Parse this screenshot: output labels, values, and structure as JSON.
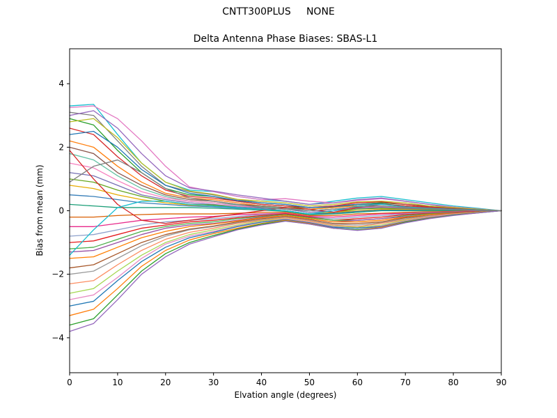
{
  "figure": {
    "suptitle": "CNTT300PLUS     NONE"
  },
  "chart_data": {
    "type": "line",
    "title": "Delta Antenna Phase Biases: SBAS-L1",
    "xlabel": "Elvation angle (degrees)",
    "ylabel": "Bias from mean (mm)",
    "xlim": [
      0,
      90
    ],
    "ylim": [
      -5.1,
      5.1
    ],
    "xticks": [
      0,
      10,
      20,
      30,
      40,
      50,
      60,
      70,
      80,
      90
    ],
    "yticks": [
      -4,
      -2,
      0,
      2,
      4
    ],
    "ytick_labels": [
      "−4",
      "−2",
      "0",
      "2",
      "4"
    ],
    "grid": false,
    "legend": "none",
    "background": "#ffffff",
    "frame_color": "#000000",
    "x": [
      0,
      5,
      10,
      15,
      20,
      25,
      30,
      35,
      40,
      45,
      50,
      55,
      60,
      65,
      70,
      75,
      80,
      85,
      90
    ],
    "series": [
      {
        "name": "line-01",
        "color": "#17becf",
        "values": [
          3.3,
          3.35,
          2.4,
          1.5,
          0.9,
          0.65,
          0.6,
          0.45,
          0.35,
          0.3,
          0.2,
          0.3,
          0.4,
          0.45,
          0.35,
          0.25,
          0.15,
          0.08,
          0
        ]
      },
      {
        "name": "line-02",
        "color": "#e377c2",
        "values": [
          3.25,
          3.3,
          2.9,
          2.2,
          1.4,
          0.75,
          0.6,
          0.45,
          0.35,
          0.38,
          0.3,
          0.25,
          0.32,
          0.38,
          0.3,
          0.2,
          0.12,
          0.06,
          0
        ]
      },
      {
        "name": "line-03",
        "color": "#7f7f7f",
        "values": [
          3.1,
          3.0,
          2.2,
          1.4,
          0.8,
          0.6,
          0.5,
          0.35,
          0.25,
          0.2,
          0.1,
          0.15,
          0.2,
          0.25,
          0.2,
          0.15,
          0.1,
          0.05,
          0
        ]
      },
      {
        "name": "line-04",
        "color": "#9467bd",
        "values": [
          3.0,
          3.15,
          2.6,
          1.8,
          1.1,
          0.72,
          0.62,
          0.5,
          0.4,
          0.3,
          0.2,
          0.25,
          0.35,
          0.4,
          0.3,
          0.2,
          0.1,
          0.05,
          0
        ]
      },
      {
        "name": "line-05",
        "color": "#2ca02c",
        "values": [
          2.9,
          2.7,
          1.9,
          1.2,
          0.7,
          0.5,
          0.45,
          0.3,
          0.2,
          0.15,
          0.05,
          0.1,
          0.2,
          0.25,
          0.2,
          0.12,
          0.08,
          0.04,
          0
        ]
      },
      {
        "name": "line-06",
        "color": "#bcbd22",
        "values": [
          2.8,
          2.9,
          2.3,
          1.5,
          0.9,
          0.62,
          0.52,
          0.36,
          0.3,
          0.25,
          0.15,
          0.2,
          0.28,
          0.3,
          0.25,
          0.15,
          0.1,
          0.05,
          0
        ]
      },
      {
        "name": "line-07",
        "color": "#d62728",
        "values": [
          2.6,
          2.4,
          1.7,
          1.1,
          0.65,
          0.45,
          0.4,
          0.3,
          0.2,
          0.15,
          0.1,
          0.15,
          0.25,
          0.28,
          0.2,
          0.12,
          0.07,
          0.03,
          0
        ]
      },
      {
        "name": "line-08",
        "color": "#1f77b4",
        "values": [
          2.4,
          2.5,
          2.0,
          1.3,
          0.8,
          0.55,
          0.45,
          0.32,
          0.25,
          0.2,
          0.1,
          0.12,
          0.2,
          0.22,
          0.15,
          0.1,
          0.06,
          0.03,
          0
        ]
      },
      {
        "name": "line-09",
        "color": "#ff7f0e",
        "values": [
          2.2,
          2.0,
          1.4,
          0.9,
          0.55,
          0.4,
          0.35,
          0.25,
          0.15,
          0.1,
          0.05,
          0.1,
          0.16,
          0.2,
          0.15,
          0.1,
          0.05,
          0.02,
          0
        ]
      },
      {
        "name": "line-10",
        "color": "#8c564b",
        "values": [
          2.0,
          1.8,
          1.2,
          0.8,
          0.5,
          0.35,
          0.3,
          0.2,
          0.15,
          0.1,
          0.0,
          0.05,
          0.1,
          0.15,
          0.1,
          0.08,
          0.05,
          0.02,
          0
        ]
      },
      {
        "name": "line-11",
        "color": "#66c2a5",
        "values": [
          1.8,
          1.6,
          1.1,
          0.7,
          0.45,
          0.3,
          0.25,
          0.18,
          0.12,
          0.08,
          0.0,
          0.05,
          0.12,
          0.15,
          0.1,
          0.06,
          0.04,
          0.02,
          0
        ]
      },
      {
        "name": "line-12",
        "color": "#f781bf",
        "values": [
          1.5,
          1.35,
          0.95,
          0.6,
          0.4,
          0.3,
          0.25,
          0.15,
          0.1,
          0.05,
          -0.05,
          0.0,
          0.1,
          0.12,
          0.08,
          0.05,
          0.03,
          0.01,
          0
        ]
      },
      {
        "name": "line-13",
        "color": "#7570b3",
        "values": [
          1.2,
          1.1,
          0.8,
          0.5,
          0.35,
          0.25,
          0.2,
          0.12,
          0.08,
          0.05,
          -0.05,
          0.0,
          0.08,
          0.1,
          0.07,
          0.05,
          0.03,
          0.01,
          0
        ]
      },
      {
        "name": "line-14",
        "color": "#66a61e",
        "values": [
          1.0,
          0.9,
          0.65,
          0.45,
          0.3,
          0.2,
          0.18,
          0.1,
          0.05,
          0.0,
          -0.1,
          -0.05,
          0.05,
          0.08,
          0.05,
          0.03,
          0.02,
          0.01,
          0
        ]
      },
      {
        "name": "line-15",
        "color": "#e6ab02",
        "values": [
          0.8,
          0.7,
          0.5,
          0.35,
          0.25,
          0.18,
          0.15,
          0.1,
          0.05,
          0.0,
          -0.1,
          -0.05,
          0.0,
          0.05,
          0.04,
          0.02,
          0.01,
          0.0,
          0
        ]
      },
      {
        "name": "line-16",
        "color": "#377eb8",
        "values": [
          0.5,
          0.45,
          0.35,
          0.25,
          0.2,
          0.15,
          0.12,
          0.08,
          0.05,
          0.0,
          -0.1,
          -0.08,
          -0.02,
          0.02,
          0.02,
          0.01,
          0.01,
          0.0,
          0
        ]
      },
      {
        "name": "line-17",
        "color": "#1b9e77",
        "values": [
          0.2,
          0.15,
          0.1,
          0.1,
          0.1,
          0.1,
          0.08,
          0.05,
          0.02,
          -0.02,
          -0.12,
          -0.1,
          -0.05,
          0.0,
          0.0,
          0.0,
          0.0,
          0.0,
          0
        ]
      },
      {
        "name": "line-18",
        "color": "#d95f02",
        "values": [
          -0.2,
          -0.2,
          -0.15,
          -0.12,
          -0.1,
          -0.1,
          -0.1,
          -0.08,
          -0.05,
          -0.05,
          -0.15,
          -0.15,
          -0.1,
          -0.08,
          -0.05,
          -0.03,
          -0.02,
          -0.01,
          0
        ]
      },
      {
        "name": "line-19",
        "color": "#e7298a",
        "values": [
          -0.5,
          -0.5,
          -0.4,
          -0.3,
          -0.25,
          -0.2,
          -0.18,
          -0.12,
          -0.1,
          -0.08,
          -0.18,
          -0.2,
          -0.15,
          -0.1,
          -0.08,
          -0.05,
          -0.03,
          -0.01,
          0
        ]
      },
      {
        "name": "line-20",
        "color": "#8da0cb",
        "values": [
          -0.8,
          -0.75,
          -0.6,
          -0.45,
          -0.35,
          -0.3,
          -0.25,
          -0.18,
          -0.12,
          -0.1,
          -0.2,
          -0.25,
          -0.2,
          -0.15,
          -0.1,
          -0.06,
          -0.04,
          -0.02,
          0
        ]
      },
      {
        "name": "line-21",
        "color": "#e41a1c",
        "values": [
          -1.0,
          -0.95,
          -0.75,
          -0.55,
          -0.45,
          -0.35,
          -0.3,
          -0.22,
          -0.15,
          -0.1,
          -0.2,
          -0.3,
          -0.25,
          -0.2,
          -0.12,
          -0.08,
          -0.05,
          -0.02,
          0
        ]
      },
      {
        "name": "line-22",
        "color": "#4daf4a",
        "values": [
          -1.2,
          -1.15,
          -0.9,
          -0.65,
          -0.5,
          -0.4,
          -0.35,
          -0.25,
          -0.18,
          -0.12,
          -0.22,
          -0.3,
          -0.3,
          -0.25,
          -0.15,
          -0.1,
          -0.06,
          -0.03,
          0
        ]
      },
      {
        "name": "line-23",
        "color": "#984ea3",
        "values": [
          -1.3,
          -1.25,
          -1.0,
          -0.75,
          -0.55,
          -0.45,
          -0.4,
          -0.3,
          -0.2,
          -0.15,
          -0.25,
          -0.35,
          -0.3,
          -0.25,
          -0.18,
          -0.12,
          -0.07,
          -0.03,
          0
        ]
      },
      {
        "name": "line-24",
        "color": "#ff7f00",
        "values": [
          -1.5,
          -1.45,
          -1.15,
          -0.85,
          -0.65,
          -0.5,
          -0.42,
          -0.32,
          -0.22,
          -0.15,
          -0.25,
          -0.35,
          -0.35,
          -0.3,
          -0.2,
          -0.12,
          -0.08,
          -0.04,
          0
        ]
      },
      {
        "name": "line-25",
        "color": "#a65628",
        "values": [
          -1.8,
          -1.7,
          -1.35,
          -1.0,
          -0.75,
          -0.58,
          -0.48,
          -0.35,
          -0.25,
          -0.18,
          -0.28,
          -0.4,
          -0.4,
          -0.35,
          -0.22,
          -0.15,
          -0.09,
          -0.04,
          0
        ]
      },
      {
        "name": "line-26",
        "color": "#999999",
        "values": [
          -2.0,
          -1.9,
          -1.5,
          -1.1,
          -0.8,
          -0.6,
          -0.5,
          -0.38,
          -0.28,
          -0.2,
          -0.3,
          -0.42,
          -0.45,
          -0.38,
          -0.25,
          -0.16,
          -0.1,
          -0.05,
          0
        ]
      },
      {
        "name": "line-27",
        "color": "#fc8d62",
        "values": [
          -2.3,
          -2.2,
          -1.7,
          -1.25,
          -0.9,
          -0.68,
          -0.55,
          -0.4,
          -0.3,
          -0.22,
          -0.32,
          -0.45,
          -0.5,
          -0.4,
          -0.28,
          -0.18,
          -0.1,
          -0.05,
          0
        ]
      },
      {
        "name": "line-28",
        "color": "#a6d854",
        "values": [
          -2.6,
          -2.45,
          -1.9,
          -1.4,
          -1.0,
          -0.75,
          -0.6,
          -0.45,
          -0.32,
          -0.25,
          -0.35,
          -0.48,
          -0.52,
          -0.45,
          -0.3,
          -0.2,
          -0.12,
          -0.05,
          0
        ]
      },
      {
        "name": "line-29",
        "color": "#e78ac3",
        "values": [
          -2.8,
          -2.65,
          -2.1,
          -1.5,
          -1.05,
          -0.8,
          -0.65,
          -0.48,
          -0.35,
          -0.26,
          -0.36,
          -0.5,
          -0.55,
          -0.48,
          -0.32,
          -0.2,
          -0.12,
          -0.06,
          0
        ]
      },
      {
        "name": "line-30",
        "color": "#1f77b4",
        "values": [
          -3.0,
          -2.85,
          -2.2,
          -1.6,
          -1.15,
          -0.85,
          -0.68,
          -0.5,
          -0.36,
          -0.28,
          -0.38,
          -0.52,
          -0.55,
          -0.5,
          -0.34,
          -0.22,
          -0.13,
          -0.06,
          0
        ]
      },
      {
        "name": "line-31",
        "color": "#ff7f0e",
        "values": [
          -3.3,
          -3.1,
          -2.45,
          -1.75,
          -1.25,
          -0.92,
          -0.72,
          -0.55,
          -0.4,
          -0.3,
          -0.4,
          -0.55,
          -0.6,
          -0.52,
          -0.35,
          -0.23,
          -0.14,
          -0.06,
          0
        ]
      },
      {
        "name": "line-32",
        "color": "#2ca02c",
        "values": [
          -3.6,
          -3.4,
          -2.65,
          -1.9,
          -1.35,
          -1.0,
          -0.78,
          -0.58,
          -0.42,
          -0.32,
          -0.42,
          -0.55,
          -0.6,
          -0.55,
          -0.36,
          -0.24,
          -0.14,
          -0.07,
          0
        ]
      },
      {
        "name": "line-33",
        "color": "#9467bd",
        "values": [
          -3.8,
          -3.55,
          -2.8,
          -2.0,
          -1.45,
          -1.05,
          -0.82,
          -0.6,
          -0.45,
          -0.33,
          -0.42,
          -0.55,
          -0.62,
          -0.55,
          -0.38,
          -0.25,
          -0.15,
          -0.07,
          0
        ]
      },
      {
        "name": "line-34",
        "color": "#d62728",
        "values": [
          1.9,
          1.0,
          0.2,
          -0.3,
          -0.4,
          -0.3,
          -0.2,
          -0.1,
          0.0,
          0.1,
          0.05,
          -0.05,
          0.1,
          0.2,
          0.15,
          0.1,
          0.05,
          0.02,
          0
        ]
      },
      {
        "name": "line-35",
        "color": "#17becf",
        "values": [
          -1.4,
          -0.6,
          0.1,
          0.3,
          0.3,
          0.2,
          0.15,
          0.1,
          0.05,
          0.0,
          -0.1,
          0.0,
          0.15,
          0.2,
          0.12,
          0.08,
          0.04,
          0.02,
          0
        ]
      },
      {
        "name": "line-36",
        "color": "#7f7f7f",
        "values": [
          0.9,
          1.4,
          1.6,
          1.2,
          0.7,
          0.4,
          0.3,
          0.2,
          0.1,
          0.05,
          0.0,
          0.05,
          0.12,
          0.15,
          0.1,
          0.06,
          0.03,
          0.01,
          0
        ]
      }
    ]
  }
}
